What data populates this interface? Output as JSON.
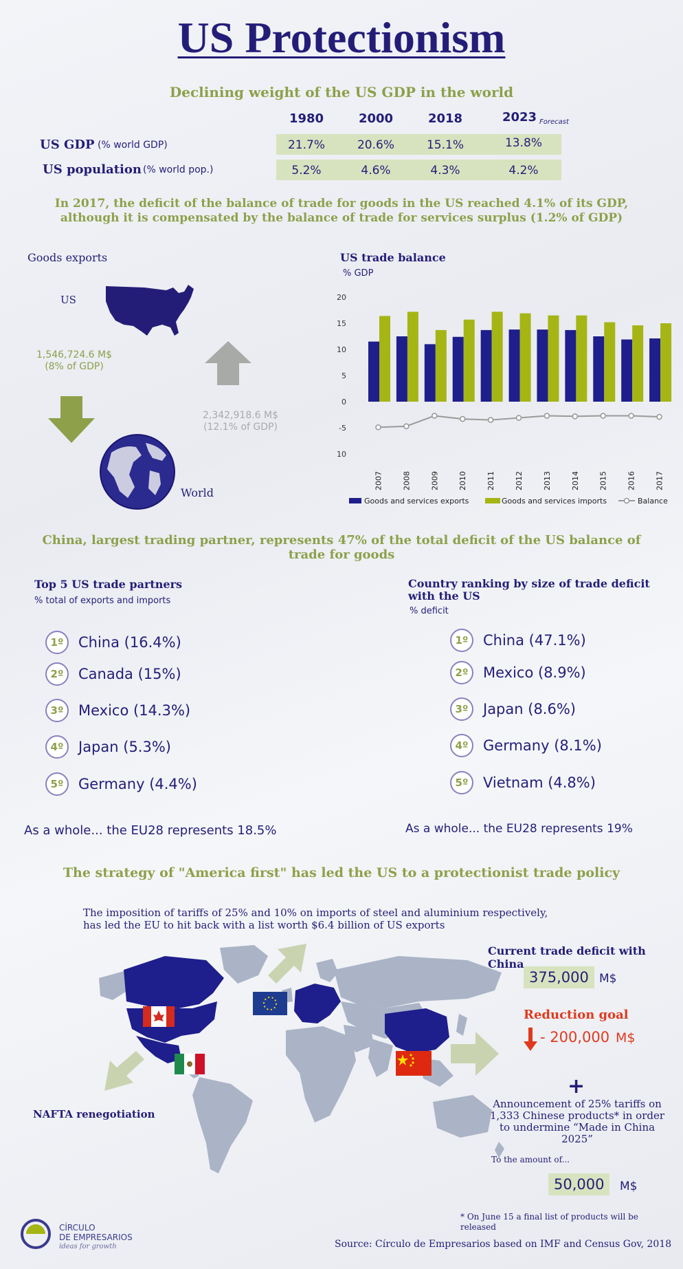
{
  "title": "US Protectionism",
  "gdp_section": {
    "heading": "Declining weight of the US GDP in the world",
    "years": [
      "1980",
      "2000",
      "2018",
      "2023"
    ],
    "forecast_note": "Forecast",
    "rows": [
      {
        "label": "US GDP",
        "sublabel": "(% world GDP)",
        "values": [
          "21.7%",
          "20.6%",
          "15.1%",
          "13.8%"
        ]
      },
      {
        "label": "US population",
        "sublabel": "(% world pop.)",
        "values": [
          "5.2%",
          "4.6%",
          "4.3%",
          "4.2%"
        ]
      }
    ]
  },
  "deficit_text": {
    "line1": "In 2017, the deficit of the balance of trade for goods in the US reached 4.1% of its GDP,",
    "line2": "although it is compensated by the balance of trade for services surplus (1.2% of GDP)"
  },
  "goods_exports": {
    "title": "Goods exports",
    "us_label": "US",
    "us_value": "1,546,724.6 M$",
    "us_pct": "(8% of GDP)",
    "world_value": "2,342,918.6 M$",
    "world_pct": "(12.1% of GDP)",
    "world_label": "World",
    "colors": {
      "arrow_down": "#8ea04a",
      "arrow_up": "#a8aaa8",
      "map": "#241d78"
    }
  },
  "chart_data": {
    "type": "bar",
    "title": "US trade balance",
    "ylabel": "% GDP",
    "ylim": [
      -10,
      20
    ],
    "yticks": [
      "20",
      "15",
      "10",
      "5",
      "0",
      "-5",
      "-10"
    ],
    "categories": [
      "2007",
      "2008",
      "2009",
      "2010",
      "2011",
      "2012",
      "2013",
      "2014",
      "2015",
      "2016",
      "2017"
    ],
    "series": [
      {
        "name": "Goods and services exports",
        "type": "bar",
        "color": "#1e1e8c",
        "values": [
          11.5,
          12.5,
          11,
          12.4,
          13.7,
          13.8,
          13.8,
          13.7,
          12.5,
          11.9,
          12.1
        ]
      },
      {
        "name": "Goods and services imports",
        "type": "bar",
        "color": "#a5b514",
        "values": [
          16.4,
          17.2,
          13.7,
          15.7,
          17.2,
          16.9,
          16.5,
          16.5,
          15.2,
          14.6,
          15
        ]
      },
      {
        "name": "Balance",
        "type": "line",
        "color": "#9a9a9a",
        "values": [
          -4.9,
          -4.7,
          -2.7,
          -3.3,
          -3.5,
          -3.1,
          -2.7,
          -2.8,
          -2.7,
          -2.7,
          -2.9
        ]
      }
    ],
    "legend_position": "bottom",
    "grid": false
  },
  "china_heading": {
    "line1": "China, largest trading partner, represents 47% of the total deficit of the US balance of",
    "line2": "trade for goods"
  },
  "partners": {
    "title": "Top 5 US trade partners",
    "subtitle": "% total of exports and imports",
    "items": [
      {
        "rank": "1º",
        "label": "China (16.4%)"
      },
      {
        "rank": "2º",
        "label": "Canada (15%)"
      },
      {
        "rank": "3º",
        "label": "Mexico (14.3%)"
      },
      {
        "rank": "4º",
        "label": "Japan (5.3%)"
      },
      {
        "rank": "5º",
        "label": "Germany (4.4%)"
      }
    ],
    "eu_note": "As a whole... the EU28 represents 18.5%"
  },
  "deficit_ranking": {
    "title_line1": "Country ranking by size of trade deficit",
    "title_line2": "with the US",
    "subtitle": "% deficit",
    "items": [
      {
        "rank": "1º",
        "label": "China (47.1%)"
      },
      {
        "rank": "2º",
        "label": "Mexico (8.9%)"
      },
      {
        "rank": "3º",
        "label": "Japan (8.6%)"
      },
      {
        "rank": "4º",
        "label": "Germany (8.1%)"
      },
      {
        "rank": "5º",
        "label": "Vietnam (4.8%)"
      }
    ],
    "eu_note": "As a whole... the EU28 represents 19%"
  },
  "strategy": {
    "heading": "The strategy of \"America first\" has led the US to a protectionist trade policy",
    "tariff_line1": "The imposition of tariffs of 25% and 10% on imports of steel and aluminium respectively,",
    "tariff_line2": "has led the EU to hit back with a list worth $6.4 billion of US exports",
    "nafta": "NAFTA renegotiation",
    "current_deficit_title": "Current trade deficit with China",
    "current_deficit_value": "375,000",
    "current_deficit_unit": "M$",
    "reduction_title": "Reduction goal",
    "reduction_value": "- 200,000",
    "reduction_unit": "M$",
    "plus": "+",
    "announcement": [
      "Announcement of 25% tariffs on",
      "1,333 Chinese products* in order",
      "to undermine “Made in China",
      "2025”"
    ],
    "amount_label": "To the amount of...",
    "amount_value": "50,000",
    "amount_unit": "M$",
    "footnote_line1": "* On June 15 a final list of products will be",
    "footnote_line2": "released",
    "colors": {
      "red": "#e03a1e",
      "map_grey": "#aab4c6",
      "map_highlight": "#1e1e8c",
      "arrow": "#c9d3b0"
    }
  },
  "footer": {
    "logo_line1": "CÍRCULO",
    "logo_line2": "DE EMPRESARIOS",
    "logo_tagline": "ideas for growth",
    "source": "Source: Círculo de Empresarios based on IMF and Census Gov, 2018"
  }
}
